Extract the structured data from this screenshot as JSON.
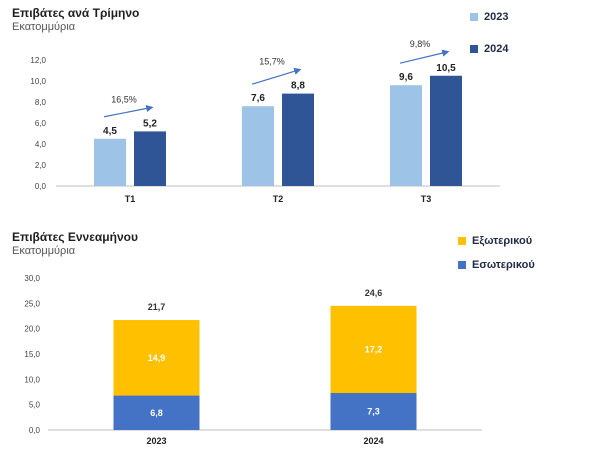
{
  "chart_data": [
    {
      "type": "bar",
      "title": "Επιβάτες ανά Τρίμηνο",
      "subtitle": "Εκατομμύρια",
      "categories": [
        "Τ1",
        "Τ2",
        "Τ3"
      ],
      "series": [
        {
          "name": "2023",
          "values": [
            4.5,
            7.6,
            9.6
          ],
          "labels": [
            "4,5",
            "7,6",
            "9,6"
          ],
          "color": "#9dc3e6"
        },
        {
          "name": "2024",
          "values": [
            5.2,
            8.8,
            10.5
          ],
          "labels": [
            "5,2",
            "8,8",
            "10,5"
          ],
          "color": "#2f5597"
        }
      ],
      "growth_labels": [
        "16,5%",
        "15,7%",
        "9,8%"
      ],
      "ylim": [
        0,
        12
      ],
      "yticks": [
        "0,0",
        "2,0",
        "4,0",
        "6,0",
        "8,0",
        "10,0",
        "12,0"
      ],
      "legend": "top-right",
      "grid": false
    },
    {
      "type": "bar",
      "stacked": true,
      "title": "Επιβάτες Εννεαμήνου",
      "subtitle": "Εκατομμύρια",
      "categories": [
        "2023",
        "2024"
      ],
      "series": [
        {
          "name": "Εσωτερικού",
          "values": [
            6.8,
            7.3
          ],
          "labels": [
            "6,8",
            "7,3"
          ],
          "color": "#4472c4"
        },
        {
          "name": "Εξωτερικού",
          "values": [
            14.9,
            17.2
          ],
          "labels": [
            "14,9",
            "17,2"
          ],
          "color": "#ffc000"
        }
      ],
      "totals": [
        "21,7",
        "24,6"
      ],
      "ylim": [
        0,
        30
      ],
      "yticks": [
        "0,0",
        "5,0",
        "10,0",
        "15,0",
        "20,0",
        "25,0",
        "30,0"
      ],
      "legend": "top-right",
      "grid": false
    }
  ]
}
